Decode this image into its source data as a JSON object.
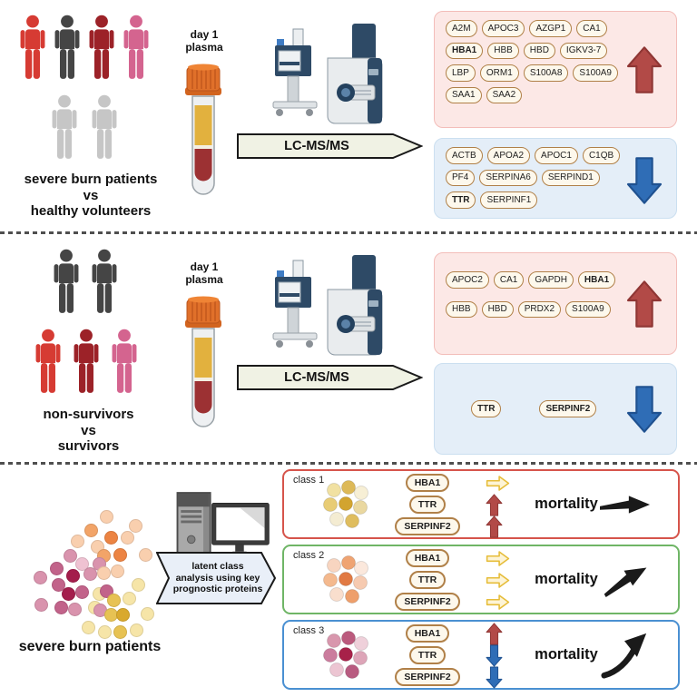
{
  "colors": {
    "person_red": "#d63b33",
    "person_dark": "#454545",
    "person_maroon": "#9c2228",
    "person_pink": "#d4648f",
    "person_gray": "#c6c6c6",
    "up_arrow_fill": "#b24a47",
    "up_arrow_stroke": "#8f3634",
    "down_arrow_fill": "#2f6db6",
    "down_arrow_stroke": "#1f5190",
    "stable_arrow_fill": "#fdf4d6",
    "stable_arrow_stroke": "#e6bd3a",
    "mortality_arrow": "#1a1a1a",
    "up_box_bg": "#fce8e6",
    "up_box_border": "#f3bdb9",
    "down_box_bg": "#e4eef8",
    "down_box_border": "#cbdff0",
    "pill_bg": "#fdf8ec",
    "pill_border": "#b08048",
    "scatter": {
      "p1": "#f9cfae",
      "p2": "#f2a468",
      "p3": "#ec8443",
      "p4": "#d993ad",
      "p5": "#c2638a",
      "p6": "#a41d4c",
      "p7": "#f6e5a8",
      "p8": "#e7c253",
      "p9": "#d9a92e",
      "p10": "#efc2d2"
    }
  },
  "panel1": {
    "cohort": {
      "group1_colors": [
        "#d63b33",
        "#454545",
        "#9c2228",
        "#d4648f"
      ],
      "group2_colors": [
        "#c6c6c6",
        "#c6c6c6"
      ],
      "label_lines": [
        "severe burn patients",
        "vs",
        "healthy volunteers"
      ]
    },
    "sample_label_lines": [
      "day 1",
      "plasma"
    ],
    "method_label": "LC-MS/MS",
    "upregulated": {
      "proteins": [
        "A2M",
        "APOC3",
        "AZGP1",
        "CA1",
        "HBA1",
        "HBB",
        "HBD",
        "IGKV3-7",
        "LBP",
        "ORM1",
        "S100A8",
        "S100A9",
        "SAA1",
        "SAA2"
      ],
      "bold": [
        "HBA1"
      ]
    },
    "downregulated": {
      "proteins": [
        "ACTB",
        "APOA2",
        "APOC1",
        "C1QB",
        "PF4",
        "SERPINA6",
        "SERPIND1",
        "TTR",
        "SERPINF1"
      ],
      "bold": [
        "TTR"
      ]
    }
  },
  "panel2": {
    "cohort": {
      "group1_colors": [
        "#454545",
        "#454545"
      ],
      "group2_colors": [
        "#d63b33",
        "#9c2228",
        "#d4648f"
      ],
      "label_lines": [
        "non-survivors",
        "vs",
        "survivors"
      ]
    },
    "sample_label_lines": [
      "day 1",
      "plasma"
    ],
    "method_label": "LC-MS/MS",
    "upregulated": {
      "proteins": [
        "APOC2",
        "CA1",
        "GAPDH",
        "HBA1",
        "HBB",
        "HBD",
        "PRDX2",
        "S100A9"
      ],
      "bold": [
        "HBA1"
      ]
    },
    "downregulated": {
      "proteins": [
        "TTR",
        "SERPINF2"
      ],
      "bold": [
        "TTR",
        "SERPINF2"
      ]
    }
  },
  "panel3": {
    "cohort_label": "severe burn patients",
    "analysis_label_lines": [
      "latent class",
      "analysis using key",
      "prognostic proteins"
    ],
    "scatter_dots": [
      [
        85,
        10,
        "p1"
      ],
      [
        117,
        20,
        "p1"
      ],
      [
        68,
        25,
        "p2"
      ],
      [
        90,
        33,
        "p3"
      ],
      [
        53,
        37,
        "p1"
      ],
      [
        108,
        33,
        "p1"
      ],
      [
        75,
        43,
        "p1"
      ],
      [
        82,
        53,
        "p2"
      ],
      [
        100,
        52,
        "p3"
      ],
      [
        128,
        52,
        "p1"
      ],
      [
        45,
        53,
        "p4"
      ],
      [
        58,
        62,
        "p10"
      ],
      [
        77,
        62,
        "p4"
      ],
      [
        30,
        67,
        "p5"
      ],
      [
        48,
        75,
        "p6"
      ],
      [
        67,
        73,
        "p4"
      ],
      [
        82,
        72,
        "p1"
      ],
      [
        97,
        70,
        "p1"
      ],
      [
        12,
        77,
        "p4"
      ],
      [
        32,
        85,
        "p5"
      ],
      [
        43,
        95,
        "p6"
      ],
      [
        58,
        93,
        "p5"
      ],
      [
        77,
        95,
        "p7"
      ],
      [
        85,
        92,
        "p5"
      ],
      [
        93,
        102,
        "p8"
      ],
      [
        110,
        100,
        "p7"
      ],
      [
        120,
        85,
        "p7"
      ],
      [
        13,
        107,
        "p4"
      ],
      [
        35,
        110,
        "p5"
      ],
      [
        50,
        112,
        "p4"
      ],
      [
        72,
        110,
        "p7"
      ],
      [
        78,
        113,
        "p4"
      ],
      [
        90,
        118,
        "p8"
      ],
      [
        103,
        118,
        "p9"
      ],
      [
        130,
        117,
        "p7"
      ],
      [
        65,
        132,
        "p7"
      ],
      [
        83,
        137,
        "p7"
      ],
      [
        100,
        137,
        "p8"
      ],
      [
        118,
        135,
        "p7"
      ]
    ],
    "classes": [
      {
        "label": "class 1",
        "border_color": "#d6544b",
        "cluster_colors": [
          "#f1e1a2",
          "#ddb958",
          "#f7efd5",
          "#e8cc75",
          "#d2a42f",
          "#ead8a0",
          "#f4ecd2",
          "#dfbd5e"
        ],
        "proteins": [
          {
            "name": "HBA1",
            "trend": "stable"
          },
          {
            "name": "TTR",
            "trend": "up"
          },
          {
            "name": "SERPINF2",
            "trend": "up"
          }
        ],
        "mortality_label": "mortality",
        "mortality_trend": "flat"
      },
      {
        "label": "class 2",
        "border_color": "#6fb566",
        "cluster_colors": [
          "#f8d5c0",
          "#efa473",
          "#fbe8dc",
          "#f4b98e",
          "#e17a44",
          "#f6cab0",
          "#f9decd",
          "#ee9f6b"
        ],
        "proteins": [
          {
            "name": "HBA1",
            "trend": "stable"
          },
          {
            "name": "TTR",
            "trend": "stable"
          },
          {
            "name": "SERPINF2",
            "trend": "stable"
          }
        ],
        "mortality_label": "mortality",
        "mortality_trend": "rising"
      },
      {
        "label": "class 3",
        "border_color": "#4a90d2",
        "cluster_colors": [
          "#d897ad",
          "#bb5a7d",
          "#efd0da",
          "#cb7c9d",
          "#a72149",
          "#dda5b8",
          "#ecc5d2",
          "#b85b80"
        ],
        "proteins": [
          {
            "name": "HBA1",
            "trend": "up"
          },
          {
            "name": "TTR",
            "trend": "down"
          },
          {
            "name": "SERPINF2",
            "trend": "down"
          }
        ],
        "mortality_label": "mortality",
        "mortality_trend": "steep"
      }
    ]
  }
}
